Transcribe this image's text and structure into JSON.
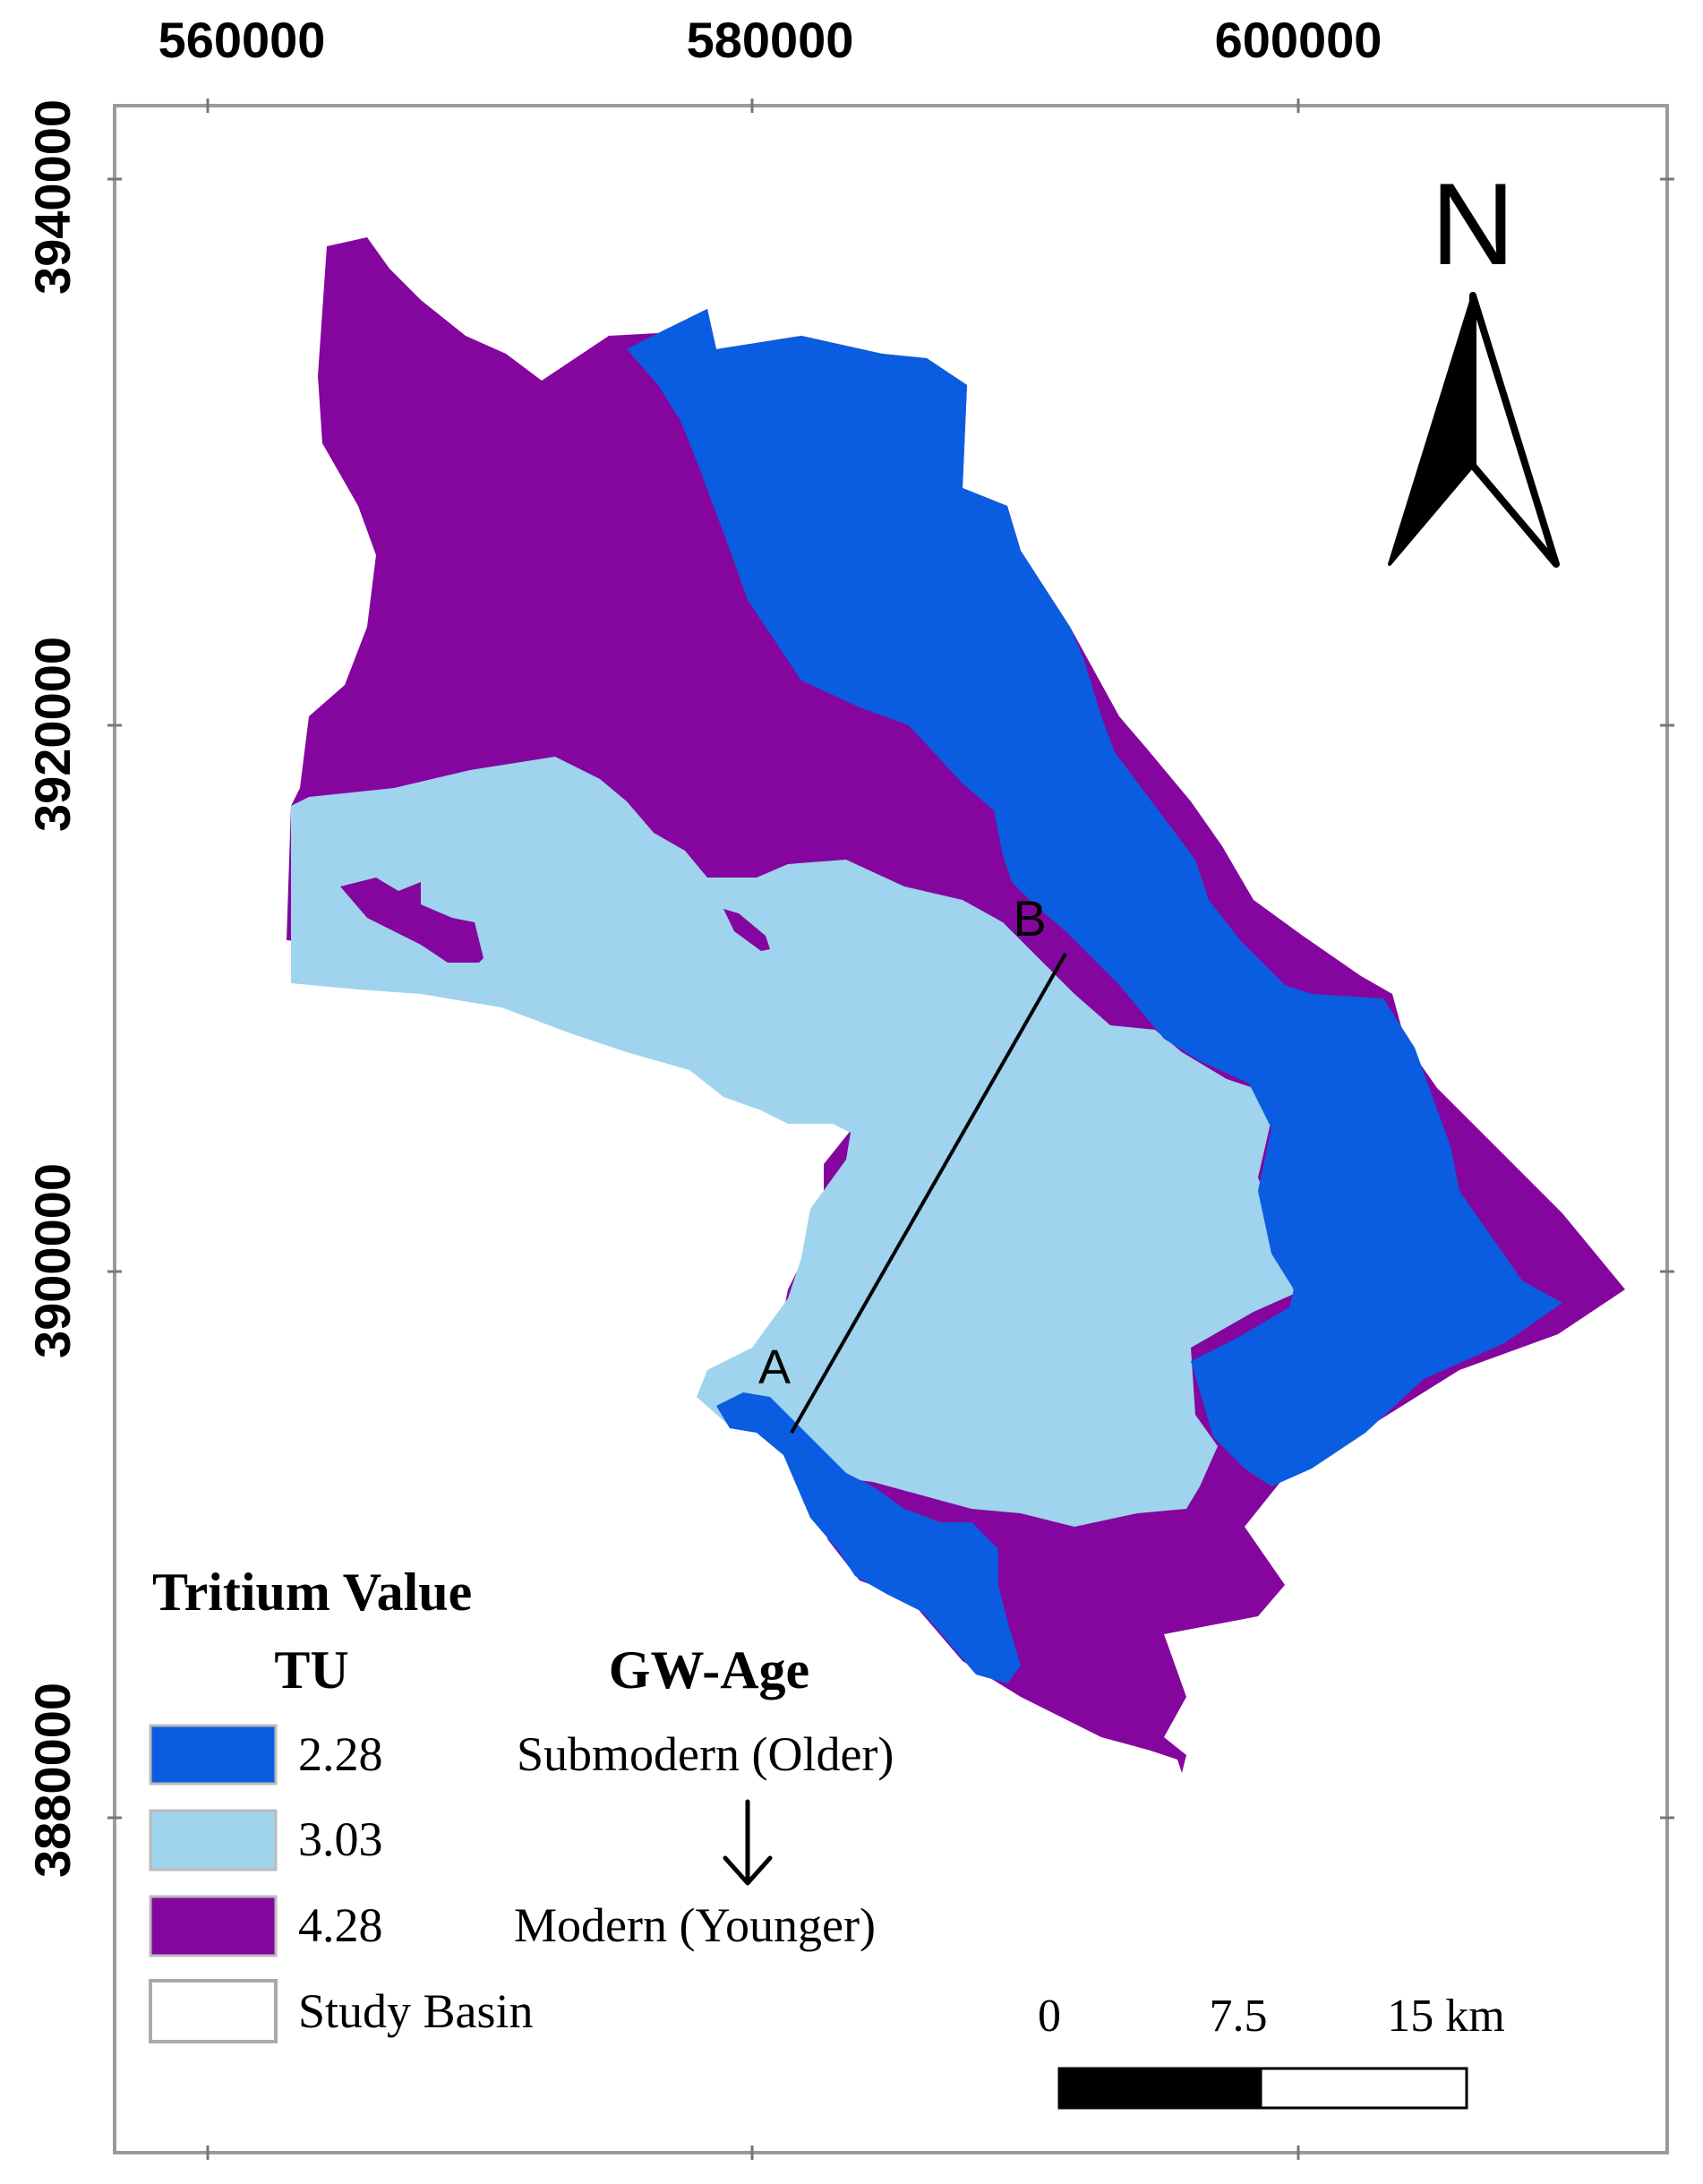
{
  "map": {
    "x_ticks": [
      "560000",
      "580000",
      "600000"
    ],
    "y_ticks": [
      "3940000",
      "3920000",
      "3900000",
      "3880000"
    ],
    "north_label": "N",
    "section_labels": [
      "A",
      "B"
    ],
    "zones": [
      {
        "name": "submodern",
        "color": "#0a5ce0"
      },
      {
        "name": "intermediate",
        "color": "#9fd3ee"
      },
      {
        "name": "modern",
        "color": "#84069e"
      }
    ]
  },
  "legend": {
    "title": "Tritium Value",
    "tu_header": "TU",
    "age_header": "GW-Age",
    "items": [
      {
        "value": "2.28",
        "age": "Submodern (Older)",
        "color": "#0a5ce0"
      },
      {
        "value": "3.03",
        "age": "",
        "color": "#9fd3ee"
      },
      {
        "value": "4.28",
        "age": "Modern (Younger)",
        "color": "#84069e"
      }
    ],
    "basin_label": "Study Basin",
    "arrow_icon": "down-arrow"
  },
  "scale_bar": {
    "labels": [
      "0",
      "7.5",
      "15 km"
    ]
  }
}
